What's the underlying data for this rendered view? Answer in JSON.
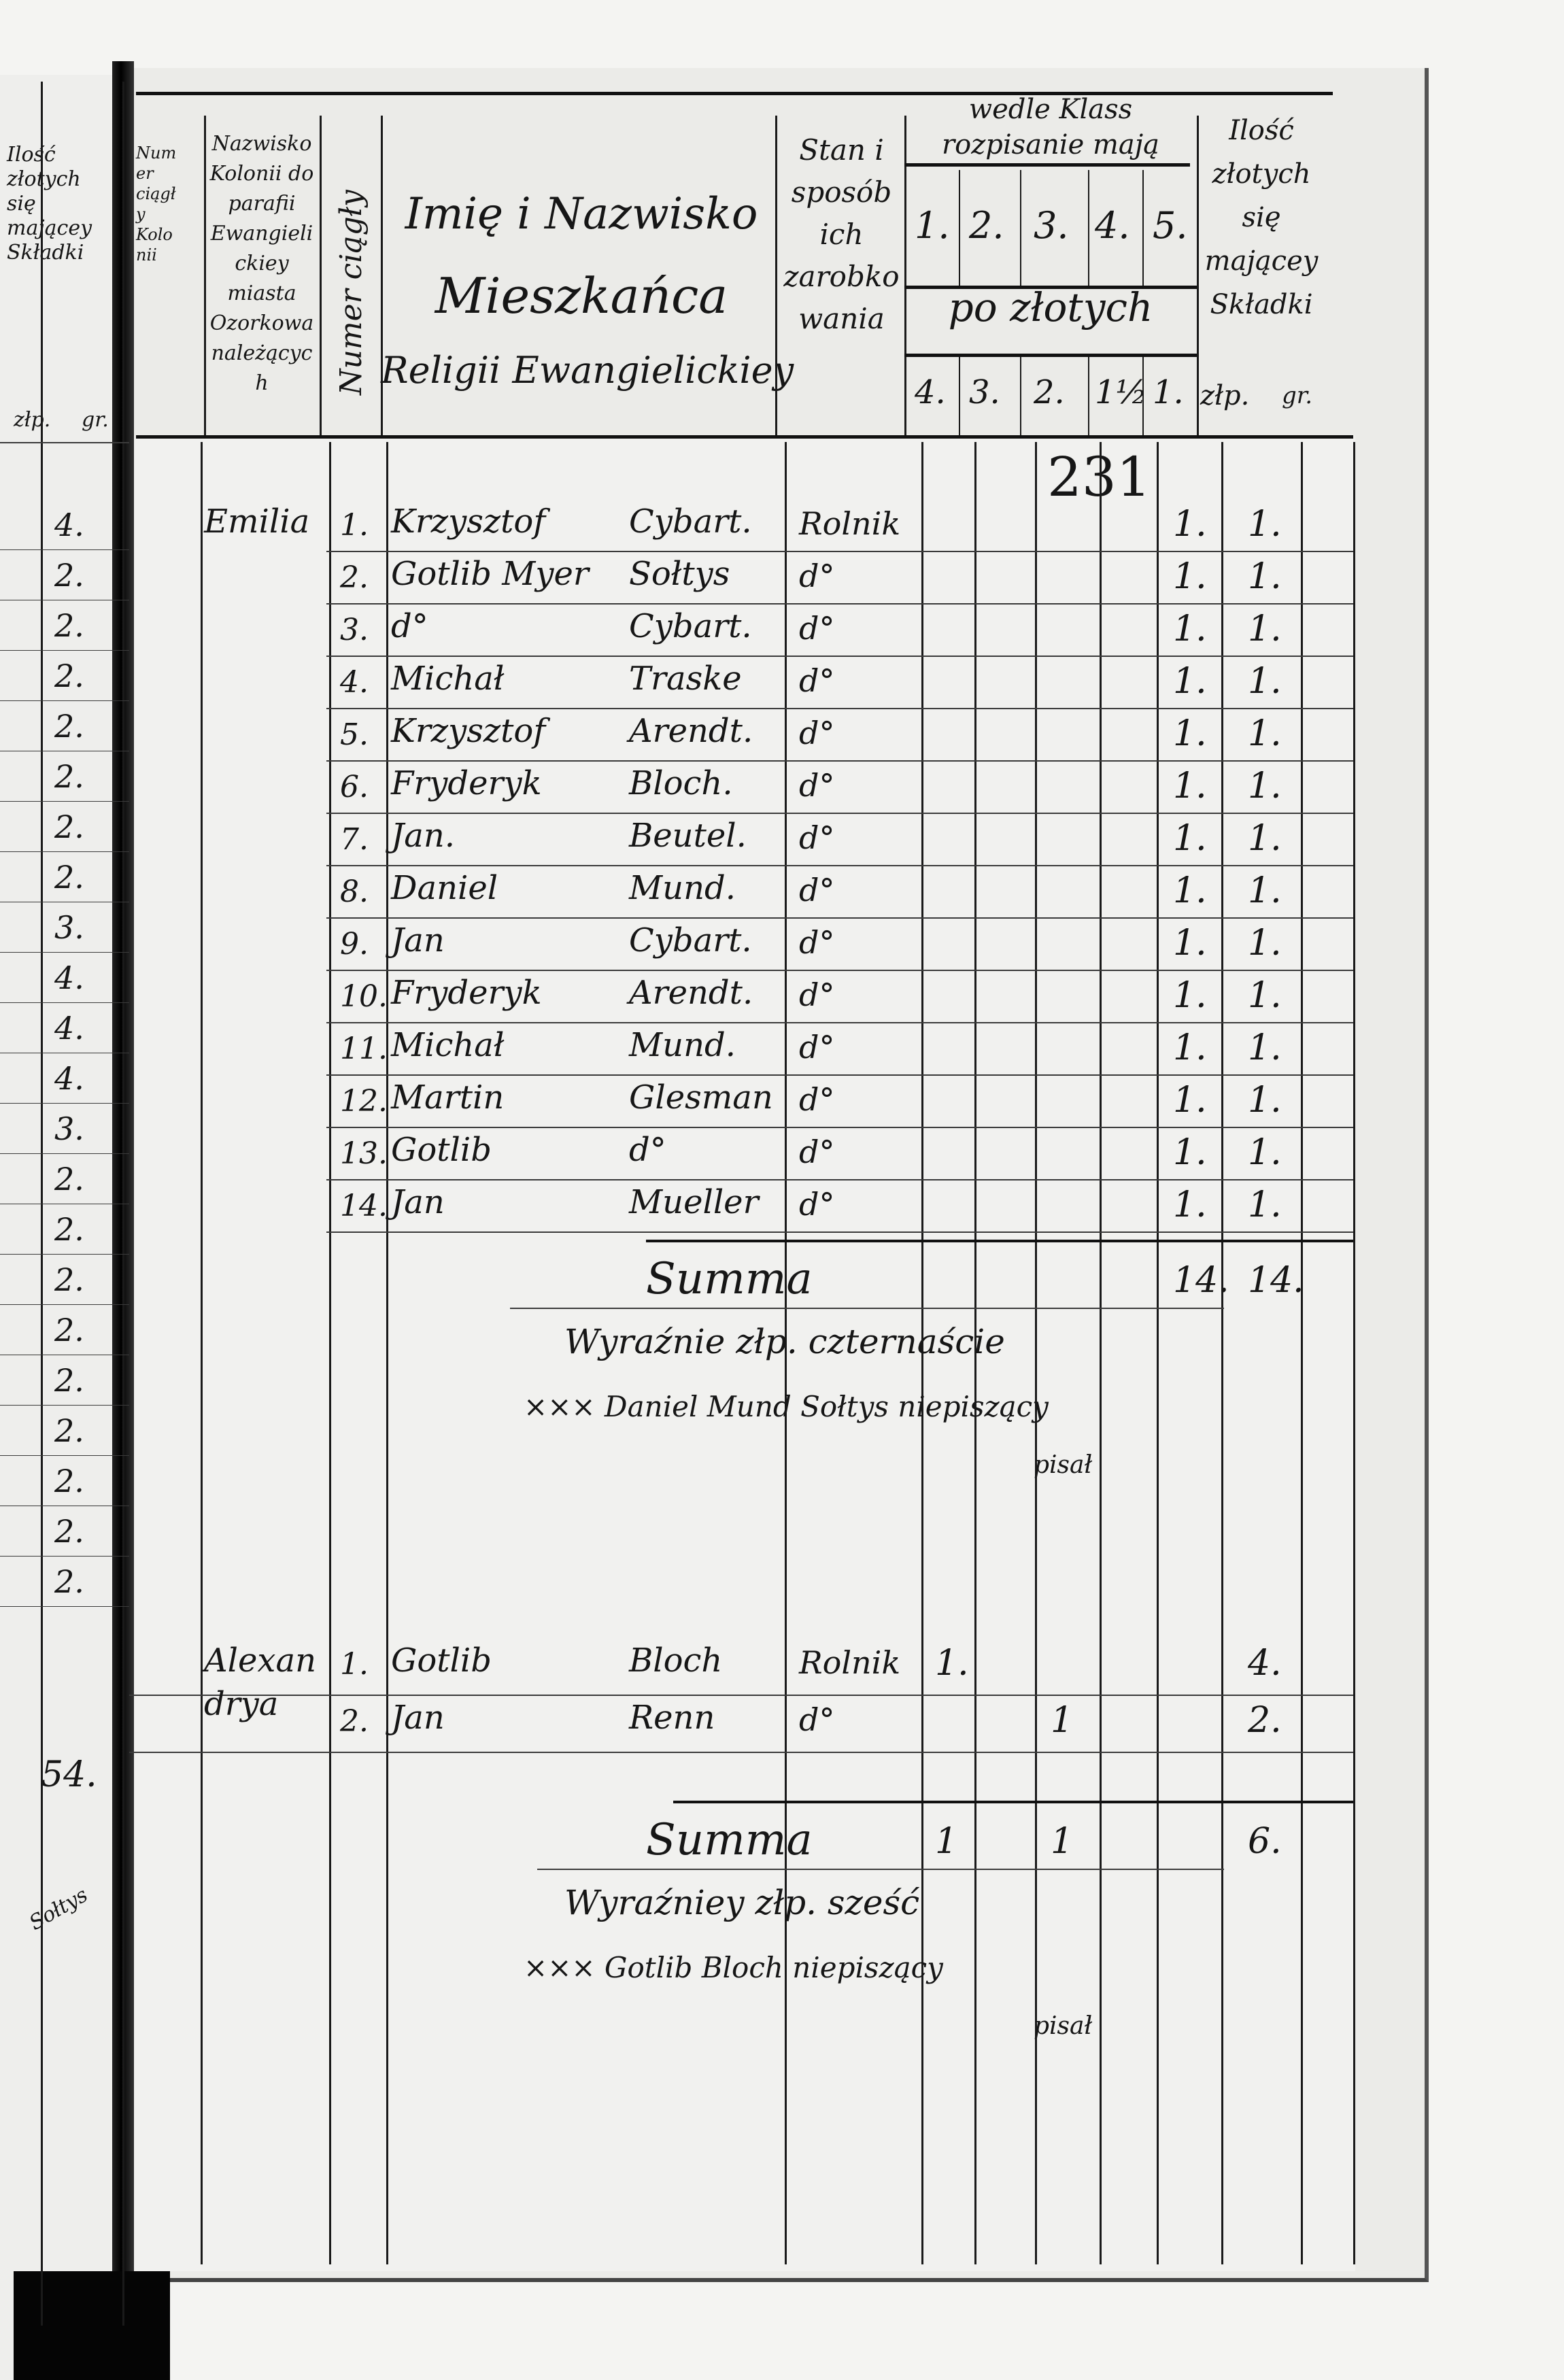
{
  "page_number": "231",
  "left_page": {
    "header": {
      "col1": "Ilość złotych się mającey Składki",
      "col2": "Numer ciągły Kolonii",
      "unit_zl": "złp.",
      "unit_gr": "gr."
    },
    "values": [
      "4.",
      "2.",
      "2.",
      "2.",
      "2.",
      "2.",
      "2.",
      "2.",
      "3.",
      "4.",
      "4.",
      "4.",
      "3.",
      "2.",
      "2.",
      "2.",
      "2.",
      "2.",
      "2.",
      "2.",
      "2.",
      "2."
    ],
    "total": "54.",
    "signature": "Sołtys"
  },
  "header": {
    "colony_col": "Nazwisko Kolonii do parafii Ewangielickiey miasta Ozorkowa należących",
    "number_col": "Numer ciągły",
    "name_col": [
      "Imię i Nazwisko",
      "Mieszkańca",
      "Religii Ewangielickiey"
    ],
    "status_col": "Stan i sposób ich zarobkowania",
    "class_group": "wedle Klass rozpisanie mają",
    "class_numbers": [
      "1.",
      "2.",
      "3.",
      "4.",
      "5."
    ],
    "class_unit": "po złotych",
    "class_rates": [
      "4.",
      "3.",
      "2.",
      "1½",
      "1."
    ],
    "total_col": "Ilość złotych się mającey Składki",
    "unit_zl": "złp.",
    "unit_gr": "gr."
  },
  "groups": [
    {
      "colony": "Emilia",
      "rows": [
        {
          "no": "1.",
          "first": "Krzysztof",
          "last": "Cybart.",
          "status": "Rolnik",
          "cls": [
            "",
            "",
            "",
            "",
            "1."
          ],
          "zl": "1."
        },
        {
          "no": "2.",
          "first": "Gotlib Myer",
          "last": "Sołtys",
          "status": "d°",
          "cls": [
            "",
            "",
            "",
            "",
            "1."
          ],
          "zl": "1."
        },
        {
          "no": "3.",
          "first": "d°",
          "last": "Cybart.",
          "status": "d°",
          "cls": [
            "",
            "",
            "",
            "",
            "1."
          ],
          "zl": "1."
        },
        {
          "no": "4.",
          "first": "Michał",
          "last": "Traske",
          "status": "d°",
          "cls": [
            "",
            "",
            "",
            "",
            "1."
          ],
          "zl": "1."
        },
        {
          "no": "5.",
          "first": "Krzysztof",
          "last": "Arendt.",
          "status": "d°",
          "cls": [
            "",
            "",
            "",
            "",
            "1."
          ],
          "zl": "1."
        },
        {
          "no": "6.",
          "first": "Fryderyk",
          "last": "Bloch.",
          "status": "d°",
          "cls": [
            "",
            "",
            "",
            "",
            "1."
          ],
          "zl": "1."
        },
        {
          "no": "7.",
          "first": "Jan.",
          "last": "Beutel.",
          "status": "d°",
          "cls": [
            "",
            "",
            "",
            "",
            "1."
          ],
          "zl": "1."
        },
        {
          "no": "8.",
          "first": "Daniel",
          "last": "Mund.",
          "status": "d°",
          "cls": [
            "",
            "",
            "",
            "",
            "1."
          ],
          "zl": "1."
        },
        {
          "no": "9.",
          "first": "Jan",
          "last": "Cybart.",
          "status": "d°",
          "cls": [
            "",
            "",
            "",
            "",
            "1."
          ],
          "zl": "1."
        },
        {
          "no": "10.",
          "first": "Fryderyk",
          "last": "Arendt.",
          "status": "d°",
          "cls": [
            "",
            "",
            "",
            "",
            "1."
          ],
          "zl": "1."
        },
        {
          "no": "11.",
          "first": "Michał",
          "last": "Mund.",
          "status": "d°",
          "cls": [
            "",
            "",
            "",
            "",
            "1."
          ],
          "zl": "1."
        },
        {
          "no": "12.",
          "first": "Martin",
          "last": "Glesman",
          "status": "d°",
          "cls": [
            "",
            "",
            "",
            "",
            "1."
          ],
          "zl": "1."
        },
        {
          "no": "13.",
          "first": "Gotlib",
          "last": "d°",
          "status": "d°",
          "cls": [
            "",
            "",
            "",
            "",
            "1."
          ],
          "zl": "1."
        },
        {
          "no": "14.",
          "first": "Jan",
          "last": "Mueller",
          "status": "d°",
          "cls": [
            "",
            "",
            "",
            "",
            "1."
          ],
          "zl": "1."
        }
      ],
      "summa_label": "Summa",
      "summa_cls": [
        "",
        "",
        "",
        "",
        "14."
      ],
      "summa_zl": "14.",
      "words": "Wyraźnie złp. czternaście",
      "signature": "××× Daniel Mund Sołtys niepiszący",
      "signature_note": "pisał"
    },
    {
      "colony": "Alexandrya",
      "rows": [
        {
          "no": "1.",
          "first": "Gotlib",
          "last": "Bloch",
          "status": "Rolnik",
          "cls": [
            "1.",
            "",
            "",
            "",
            ""
          ],
          "zl": "4."
        },
        {
          "no": "2.",
          "first": "Jan",
          "last": "Renn",
          "status": "d°",
          "cls": [
            "",
            "",
            "1",
            "",
            ""
          ],
          "zl": "2."
        }
      ],
      "summa_label": "Summa",
      "summa_cls": [
        "1",
        "",
        "1",
        "",
        ""
      ],
      "summa_zl": "6.",
      "words": "Wyraźniey złp. sześć",
      "signature": "××× Gotlib Bloch niepiszący",
      "signature_note": "pisał"
    }
  ],
  "colors": {
    "paper": "#ebebe8",
    "ink": "#161616",
    "background": "#111111"
  }
}
